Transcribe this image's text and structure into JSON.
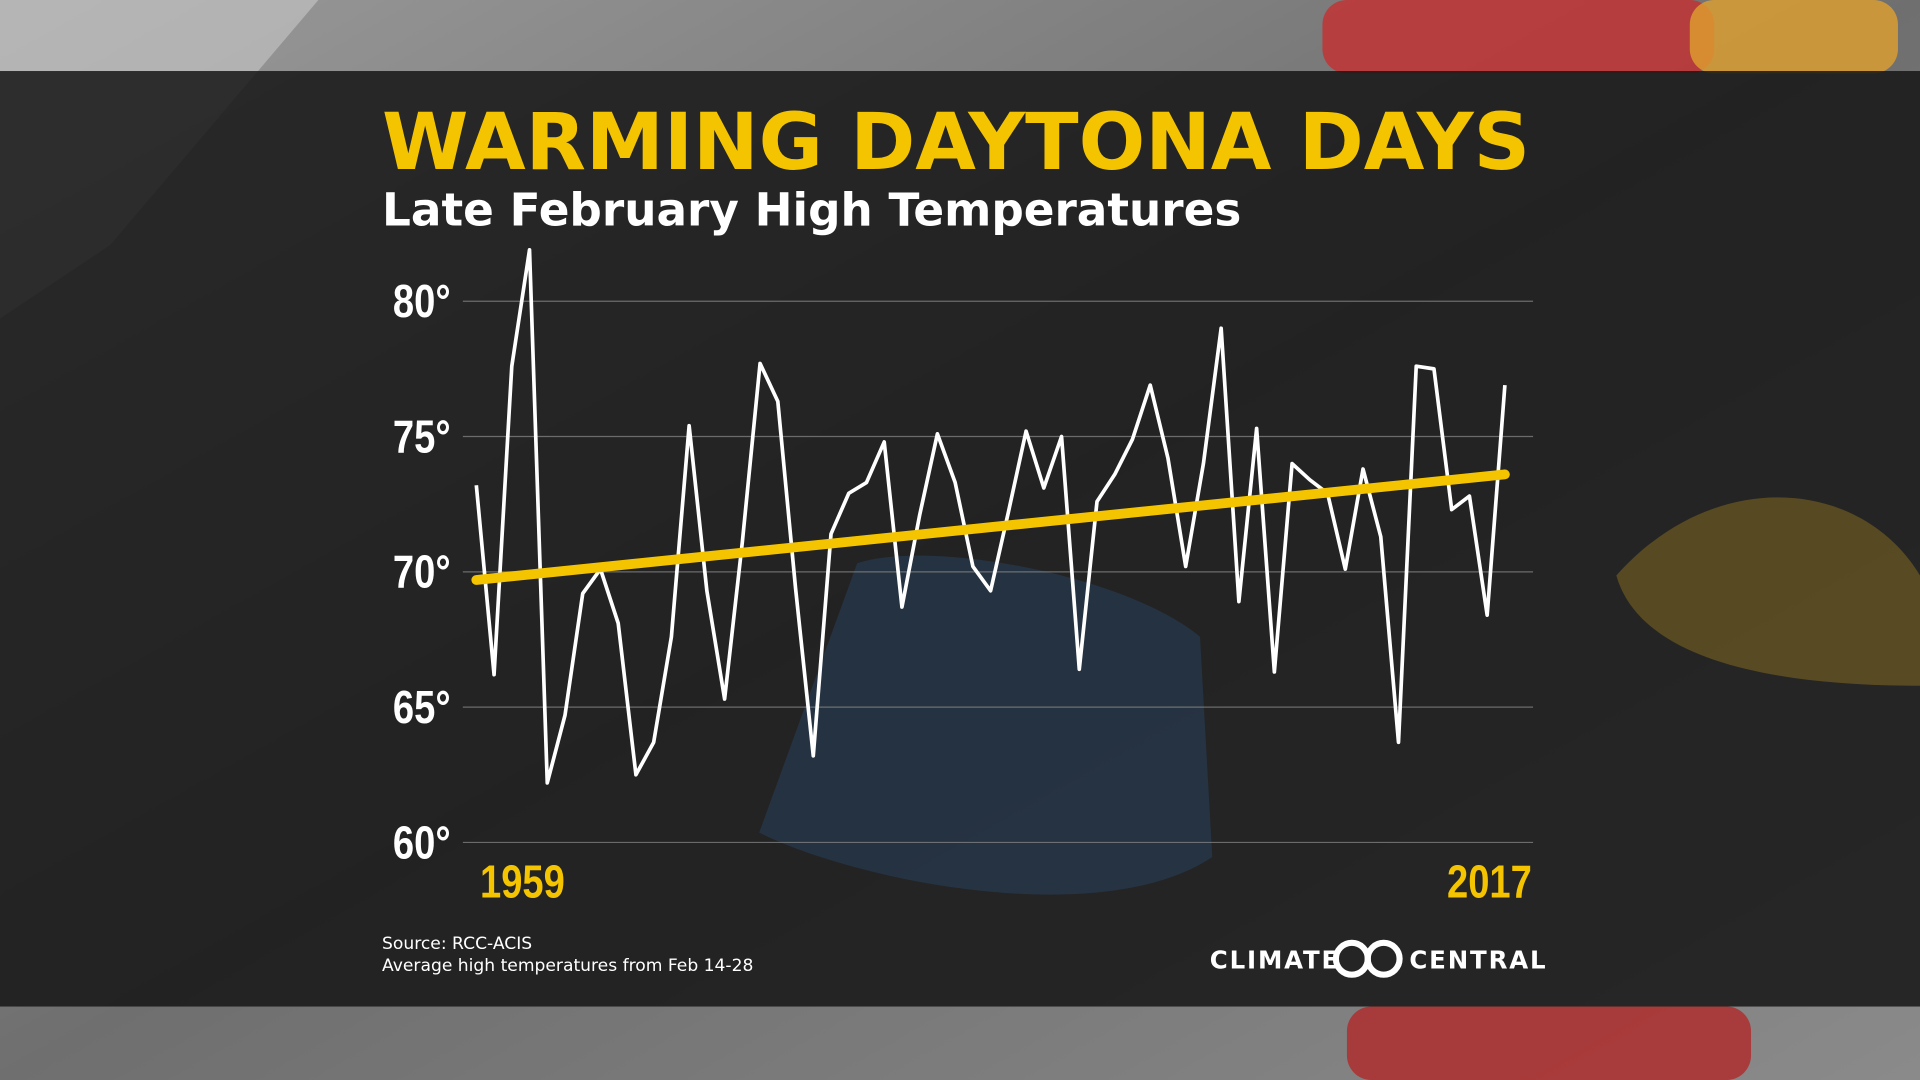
{
  "chart_data": {
    "type": "line",
    "title": "WARMING DAYTONA DAYS",
    "subtitle": "Late February High Temperatures",
    "x": [
      1959,
      1960,
      1961,
      1962,
      1963,
      1964,
      1965,
      1966,
      1967,
      1968,
      1969,
      1970,
      1971,
      1972,
      1973,
      1974,
      1975,
      1976,
      1977,
      1978,
      1979,
      1980,
      1981,
      1982,
      1983,
      1984,
      1985,
      1986,
      1987,
      1988,
      1989,
      1990,
      1991,
      1992,
      1993,
      1994,
      1995,
      1996,
      1997,
      1998,
      1999,
      2000,
      2001,
      2002,
      2003,
      2004,
      2005,
      2006,
      2007,
      2008,
      2009,
      2010,
      2011,
      2012,
      2013,
      2014,
      2015,
      2016,
      2017
    ],
    "values": [
      73.2,
      66.2,
      77.6,
      81.9,
      62.2,
      64.7,
      69.2,
      70.1,
      68.1,
      62.5,
      63.7,
      67.6,
      75.4,
      69.3,
      65.3,
      71.1,
      77.7,
      76.3,
      69.4,
      63.2,
      71.4,
      72.9,
      73.3,
      74.8,
      68.7,
      72.1,
      75.1,
      73.3,
      70.2,
      69.3,
      72.2,
      75.2,
      73.1,
      75.0,
      66.4,
      72.6,
      73.6,
      74.9,
      76.9,
      74.2,
      70.2,
      74.0,
      79.0,
      68.9,
      75.3,
      66.3,
      74.0,
      73.4,
      72.9,
      70.1,
      73.8,
      71.3,
      63.7,
      77.6,
      77.5,
      72.3,
      72.8,
      68.4,
      76.9
    ],
    "color": "#ffffff",
    "trend": {
      "x": [
        1959,
        2017
      ],
      "values": [
        69.7,
        73.6
      ],
      "color": "#f5c400"
    },
    "xlim": [
      1959,
      2017
    ],
    "xticks": [
      1959,
      2017
    ],
    "ylim": [
      60,
      80
    ],
    "yticks": [
      {
        "value": 60,
        "label": "60°"
      },
      {
        "value": 65,
        "label": "65°"
      },
      {
        "value": 70,
        "label": "70°"
      },
      {
        "value": 75,
        "label": "75°"
      },
      {
        "value": 80,
        "label": "80°"
      }
    ],
    "grid": true,
    "source": "Source: RCC-ACIS",
    "note": "Average high temperatures from Feb 14-28",
    "logo_left": "CLIMATE",
    "logo_right": "CENTRAL"
  }
}
